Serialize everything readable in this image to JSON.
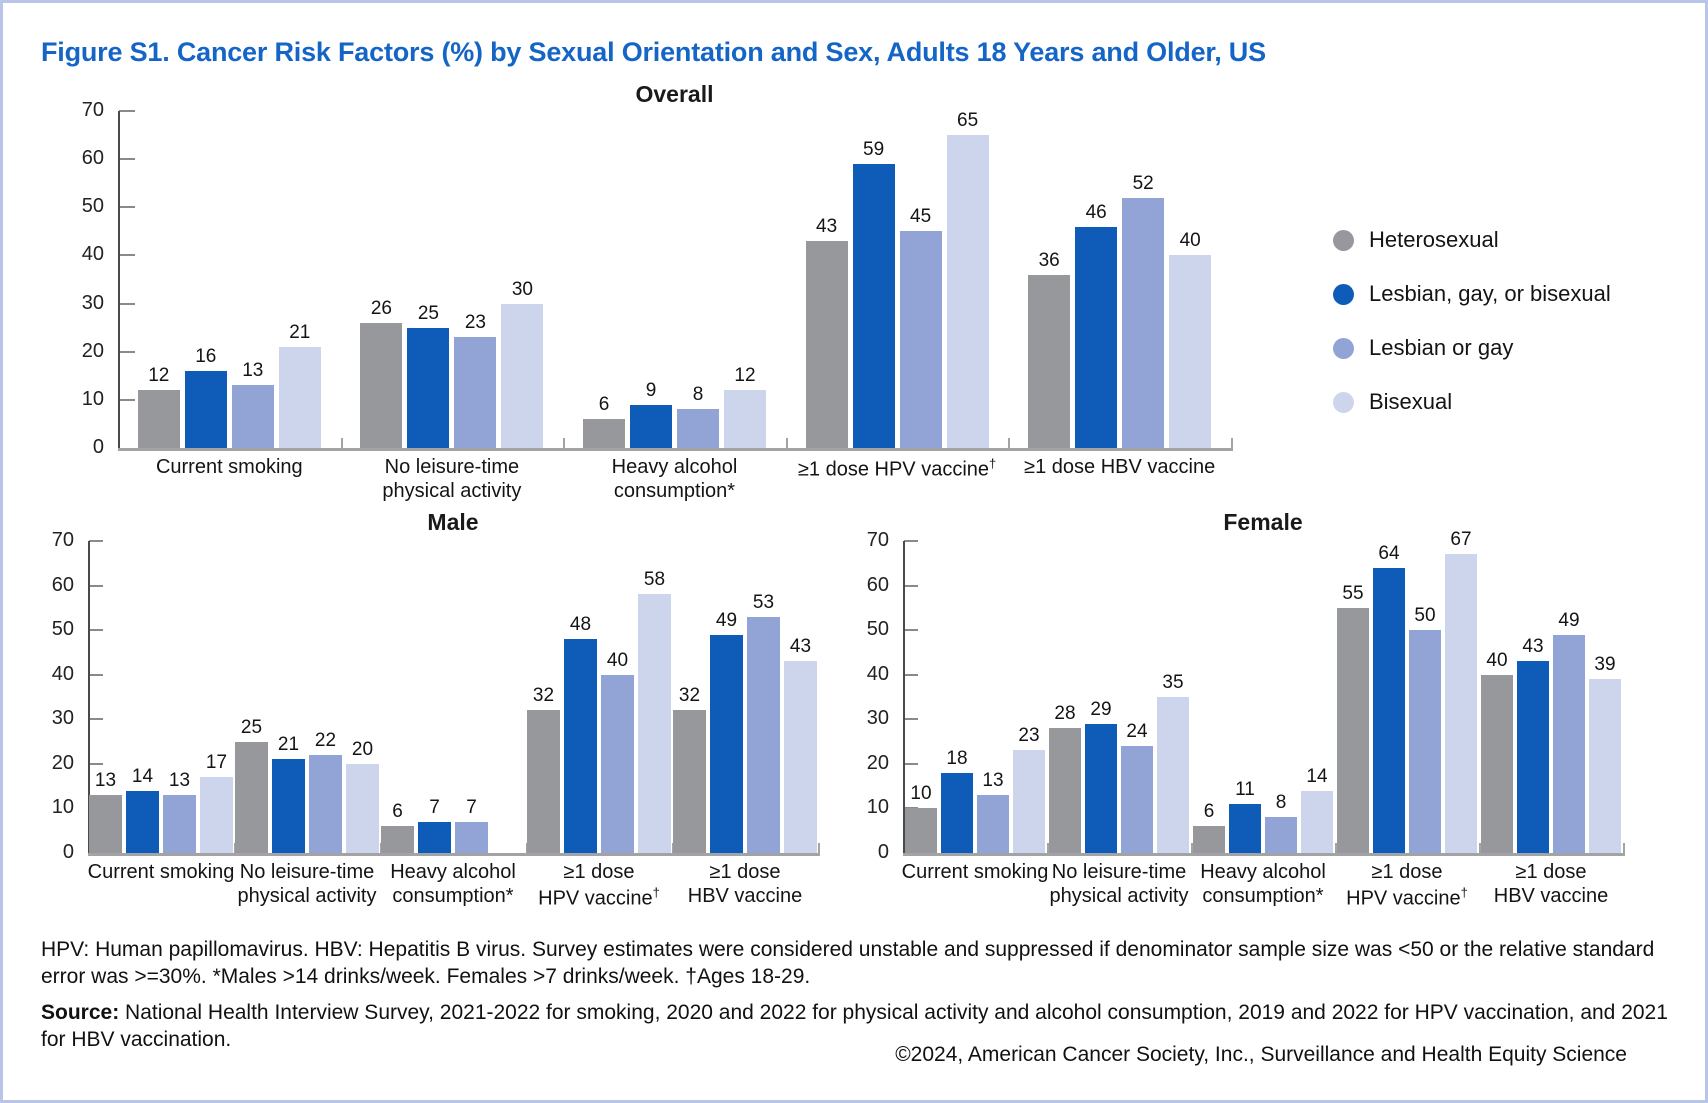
{
  "figure": {
    "title": "Figure S1. Cancer Risk Factors (%) by Sexual Orientation and Sex, Adults 18 Years and Older, US",
    "footnote": "HPV: Human papillomavirus. HBV: Hepatitis B virus. Survey estimates were considered unstable and suppressed if denominator sample size was <50 or the relative standard error was >=30%. *Males >14 drinks/week. Females >7 drinks/week. †Ages 18-29.",
    "source_label": "Source:",
    "source_text": " National Health Interview Survey, 2021-2022 for smoking, 2020 and 2022 for physical activity and alcohol consumption, 2019 and 2022 for HPV vaccination, and 2021 for HBV vaccination.",
    "copyright": "©2024, American Cancer Society, Inc., Surveillance and Health Equity Science"
  },
  "colors": {
    "title_blue": "#1565C7",
    "heterosexual": "#97989B",
    "lgb": "#0F5BB8",
    "lesbian_gay": "#92A3D6",
    "bisexual": "#CDD5EC"
  },
  "legend": {
    "items": [
      {
        "key": "heterosexual",
        "label": "Heterosexual"
      },
      {
        "key": "lgb",
        "label": "Lesbian, gay, or bisexual"
      },
      {
        "key": "lesbian_gay",
        "label": "Lesbian or gay"
      },
      {
        "key": "bisexual",
        "label": "Bisexual"
      }
    ]
  },
  "chart_data": [
    {
      "type": "bar",
      "title": "Overall",
      "ylim": [
        0,
        70
      ],
      "yticks": [
        0,
        10,
        20,
        30,
        40,
        50,
        60,
        70
      ],
      "grid": false,
      "legend_position": "right",
      "categories": [
        "Current smoking",
        "No leisure-time\nphysical activity",
        "Heavy alcohol consumption*",
        "≥1 dose HPV vaccine†",
        "≥1 dose HBV vaccine"
      ],
      "series": [
        {
          "name": "Heterosexual",
          "key": "heterosexual",
          "values": [
            12,
            26,
            6,
            43,
            36
          ]
        },
        {
          "name": "Lesbian, gay, or bisexual",
          "key": "lgb",
          "values": [
            16,
            25,
            9,
            59,
            46
          ]
        },
        {
          "name": "Lesbian or gay",
          "key": "lesbian_gay",
          "values": [
            13,
            23,
            8,
            45,
            52
          ]
        },
        {
          "name": "Bisexual",
          "key": "bisexual",
          "values": [
            21,
            30,
            12,
            65,
            40
          ]
        }
      ]
    },
    {
      "type": "bar",
      "title": "Male",
      "ylim": [
        0,
        70
      ],
      "yticks": [
        0,
        10,
        20,
        30,
        40,
        50,
        60,
        70
      ],
      "grid": false,
      "categories": [
        "Current smoking",
        "No leisure-time\nphysical activity",
        "Heavy alcohol\nconsumption*",
        "≥1 dose\nHPV vaccine†",
        "≥1 dose\nHBV vaccine"
      ],
      "series": [
        {
          "name": "Heterosexual",
          "key": "heterosexual",
          "values": [
            13,
            25,
            6,
            32,
            32
          ]
        },
        {
          "name": "Lesbian, gay, or bisexual",
          "key": "lgb",
          "values": [
            14,
            21,
            7,
            48,
            49
          ]
        },
        {
          "name": "Lesbian or gay",
          "key": "lesbian_gay",
          "values": [
            13,
            22,
            7,
            40,
            53
          ]
        },
        {
          "name": "Bisexual",
          "key": "bisexual",
          "values": [
            17,
            20,
            null,
            58,
            43
          ]
        }
      ]
    },
    {
      "type": "bar",
      "title": "Female",
      "ylim": [
        0,
        70
      ],
      "yticks": [
        0,
        10,
        20,
        30,
        40,
        50,
        60,
        70
      ],
      "grid": false,
      "categories": [
        "Current smoking",
        "No leisure-time\nphysical activity",
        "Heavy alcohol\nconsumption*",
        "≥1 dose\nHPV vaccine†",
        "≥1 dose\nHBV vaccine"
      ],
      "series": [
        {
          "name": "Heterosexual",
          "key": "heterosexual",
          "values": [
            10,
            28,
            6,
            55,
            40
          ]
        },
        {
          "name": "Lesbian, gay, or bisexual",
          "key": "lgb",
          "values": [
            18,
            29,
            11,
            64,
            43
          ]
        },
        {
          "name": "Lesbian or gay",
          "key": "lesbian_gay",
          "values": [
            13,
            24,
            8,
            50,
            49
          ]
        },
        {
          "name": "Bisexual",
          "key": "bisexual",
          "values": [
            23,
            35,
            14,
            67,
            39
          ]
        }
      ]
    }
  ]
}
